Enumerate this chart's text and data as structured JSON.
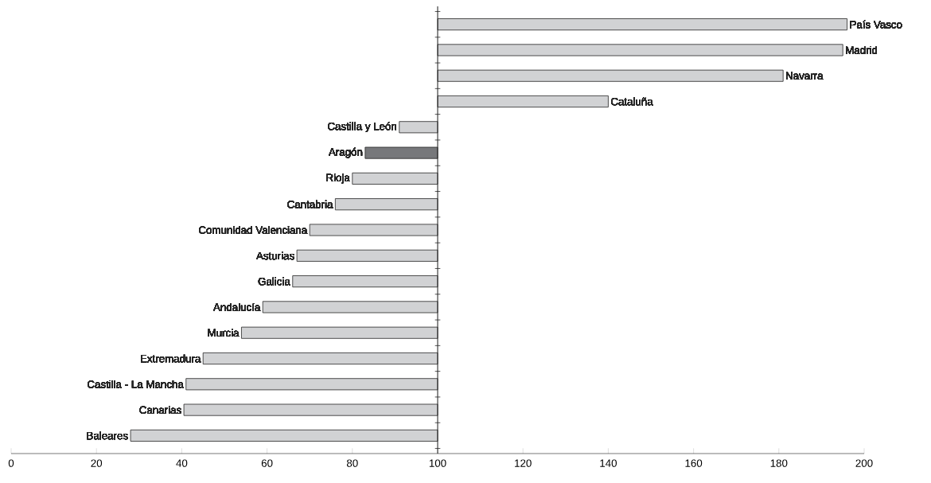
{
  "chart_data": {
    "type": "bar",
    "orientation": "horizontal",
    "categories": [
      "País Vasco",
      "Madrid",
      "Navarra",
      "Cataluña",
      "Castilla y León",
      "Aragón",
      "Rioja",
      "Cantabria",
      "Comunidad Valenciana",
      "Asturias",
      "Galicia",
      "Andalucía",
      "Murcia",
      "Extremadura",
      "Castilla - La Mancha",
      "Canarias",
      "Baleares"
    ],
    "values": [
      96,
      95,
      81,
      40,
      -9,
      -17,
      -20,
      -24,
      -30,
      -33,
      -34,
      -41,
      -46,
      -55,
      -59,
      -59.5,
      -72
    ],
    "base": [
      100,
      100,
      100,
      100,
      100,
      100,
      100,
      100,
      100,
      100,
      100,
      100,
      100,
      100,
      100,
      100,
      100
    ],
    "colors": [
      "#d1d2d4",
      "#d1d2d4",
      "#d1d2d4",
      "#d1d2d4",
      "#d1d2d4",
      "#77787b",
      "#d1d2d4",
      "#d1d2d4",
      "#d1d2d4",
      "#d1d2d4",
      "#d1d2d4",
      "#d1d2d4",
      "#d1d2d4",
      "#d1d2d4",
      "#d1d2d4",
      "#d1d2d4",
      "#d1d2d4"
    ],
    "ref_lines": [
      {
        "axis": "x",
        "value": 100
      }
    ],
    "xlim": [
      0,
      200
    ],
    "xticks": [
      0,
      20,
      40,
      60,
      80,
      100,
      120,
      140,
      160,
      180,
      200
    ]
  }
}
